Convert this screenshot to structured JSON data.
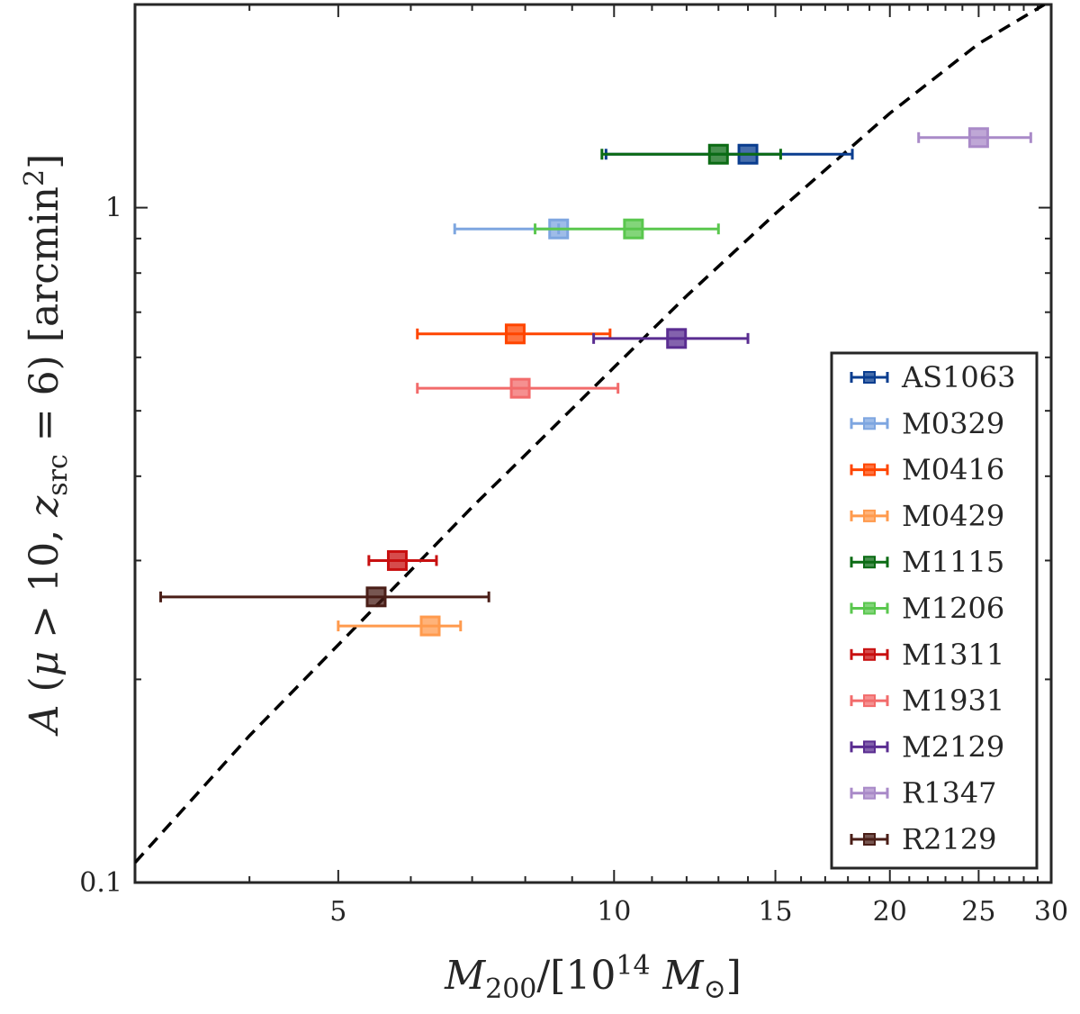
{
  "chart_data": {
    "type": "scatter",
    "title": "",
    "xlabel": "M200/[10^14 M⊙]",
    "ylabel": "A (μ > 10, zsrc = 6) [arcmin2]",
    "x_scale": "log",
    "y_scale": "log",
    "xlim": [
      3.0,
      30.0
    ],
    "ylim": [
      0.1,
      2.0
    ],
    "x_ticks": [
      {
        "value": 5,
        "label": "5"
      },
      {
        "value": 10,
        "label": "10"
      },
      {
        "value": 15,
        "label": "15"
      },
      {
        "value": 20,
        "label": "20"
      },
      {
        "value": 25,
        "label": "25"
      },
      {
        "value": 30,
        "label": "30"
      }
    ],
    "y_ticks": [
      {
        "value": 0.1,
        "label": "0.1"
      },
      {
        "value": 1,
        "label": "1"
      }
    ],
    "grid": false,
    "legend_position": "bottom-right",
    "series": [
      {
        "name": "AS1063",
        "color": "#0a3d8f",
        "x": 14.0,
        "y": 1.2,
        "x_err": [
          9.8,
          18.2
        ]
      },
      {
        "name": "M0329",
        "color": "#7ea6e0",
        "x": 8.7,
        "y": 0.93,
        "x_err": [
          6.7,
          8.7
        ]
      },
      {
        "name": "M0416",
        "color": "#ff4500",
        "x": 7.8,
        "y": 0.65,
        "x_err": [
          6.1,
          9.9
        ]
      },
      {
        "name": "M0429",
        "color": "#ff9a4d",
        "x": 6.3,
        "y": 0.24,
        "x_err": [
          5.0,
          6.8
        ]
      },
      {
        "name": "M1115",
        "color": "#0b6b14",
        "x": 13.0,
        "y": 1.2,
        "x_err": [
          9.7,
          15.2
        ]
      },
      {
        "name": "M1206",
        "color": "#5ac74e",
        "x": 10.5,
        "y": 0.93,
        "x_err": [
          8.2,
          13.0
        ]
      },
      {
        "name": "M1311",
        "color": "#c81010",
        "x": 5.8,
        "y": 0.3,
        "x_err": [
          5.4,
          6.4
        ]
      },
      {
        "name": "M1931",
        "color": "#f26b6b",
        "x": 7.9,
        "y": 0.54,
        "x_err": [
          6.1,
          10.1
        ]
      },
      {
        "name": "M2129",
        "color": "#5a2d91",
        "x": 11.7,
        "y": 0.64,
        "x_err": [
          9.5,
          14.0
        ]
      },
      {
        "name": "R1347",
        "color": "#a98ac8",
        "x": 25.0,
        "y": 1.27,
        "x_err": [
          21.5,
          28.5
        ]
      },
      {
        "name": "R2129",
        "color": "#4a1e17",
        "x": 5.5,
        "y": 0.265,
        "x_err": [
          3.2,
          7.3
        ]
      }
    ],
    "fit_curve": {
      "style": "dashed",
      "color": "#000000",
      "x": [
        3.0,
        4.0,
        5.0,
        6.0,
        7.0,
        8.0,
        10.0,
        12.0,
        15.0,
        20.0,
        25.0,
        29.5
      ],
      "y": [
        0.107,
        0.165,
        0.225,
        0.29,
        0.36,
        0.43,
        0.58,
        0.74,
        0.98,
        1.38,
        1.75,
        2.0
      ]
    }
  }
}
